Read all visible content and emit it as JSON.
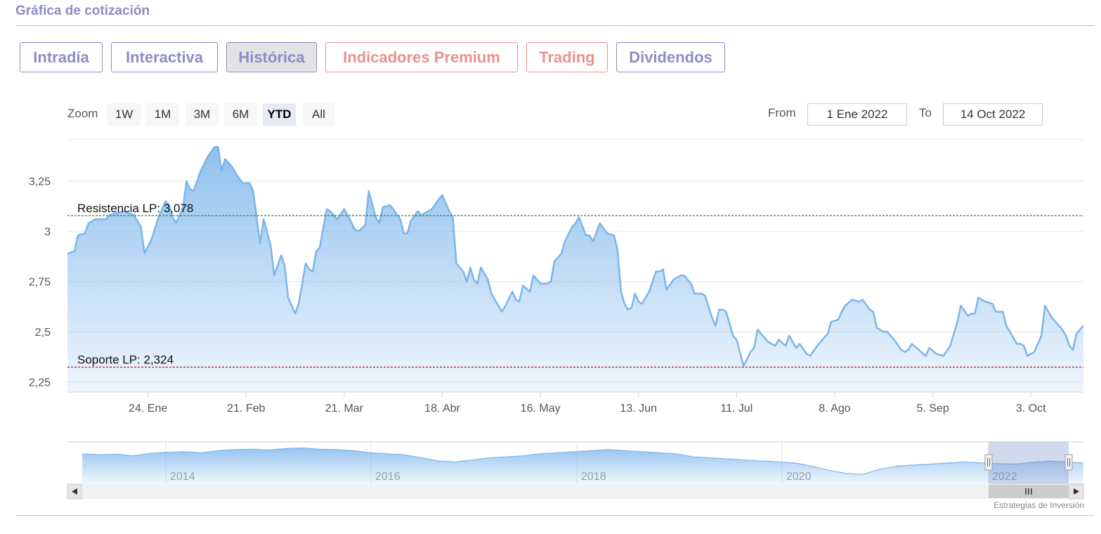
{
  "section_title": "Gráfica de cotización",
  "tabs": [
    {
      "label": "Intradía",
      "active": false,
      "premium": false
    },
    {
      "label": "Interactiva",
      "active": false,
      "premium": false
    },
    {
      "label": "Histórica",
      "active": true,
      "premium": false
    },
    {
      "label": "Indicadores Premium",
      "active": false,
      "premium": true
    },
    {
      "label": "Trading",
      "active": false,
      "premium": true
    },
    {
      "label": "Dividendos",
      "active": false,
      "premium": false
    }
  ],
  "zoom": {
    "label": "Zoom",
    "buttons": [
      "1W",
      "1M",
      "3M",
      "6M",
      "YTD",
      "All"
    ],
    "selected": "YTD"
  },
  "range": {
    "from_label": "From",
    "from_value": "1 Ene 2022",
    "to_label": "To",
    "to_value": "14 Oct 2022"
  },
  "credit": "Estrategias de Inversión",
  "colors": {
    "accent": "#8e8cc4",
    "premium": "#e8928f",
    "series_line": "#7cb5ec",
    "resistance_line": "#2e7d32",
    "support_line": "#b71c1c"
  },
  "chart_data": {
    "type": "area",
    "ylim": [
      2.2,
      3.45
    ],
    "ytick_values": [
      2.25,
      2.5,
      2.75,
      3.0,
      3.25
    ],
    "ytick_labels": [
      "2,25",
      "2,5",
      "2,75",
      "3",
      "3,25"
    ],
    "xlim": [
      0,
      286
    ],
    "xticks": [
      {
        "x": 23,
        "label": "24. Ene"
      },
      {
        "x": 51,
        "label": "21. Feb"
      },
      {
        "x": 79,
        "label": "21. Mar"
      },
      {
        "x": 107,
        "label": "18. Abr"
      },
      {
        "x": 135,
        "label": "16. May"
      },
      {
        "x": 163,
        "label": "13. Jun"
      },
      {
        "x": 191,
        "label": "11. Jul"
      },
      {
        "x": 219,
        "label": "8. Ago"
      },
      {
        "x": 247,
        "label": "5. Sep"
      },
      {
        "x": 275,
        "label": "3. Oct"
      }
    ],
    "x_unit": "days since 1 Ene 2022",
    "series": [
      {
        "points": [
          [
            0,
            2.89
          ],
          [
            2,
            2.9
          ],
          [
            3,
            2.98
          ],
          [
            5,
            2.99
          ],
          [
            6,
            3.04
          ],
          [
            8,
            3.06
          ],
          [
            11,
            3.06
          ],
          [
            12,
            3.08
          ],
          [
            14,
            3.09
          ],
          [
            16,
            3.1
          ],
          [
            19,
            3.08
          ],
          [
            21,
            3.02
          ],
          [
            22,
            2.89
          ],
          [
            24,
            2.96
          ],
          [
            26,
            3.07
          ],
          [
            28,
            3.15
          ],
          [
            29,
            3.13
          ],
          [
            30,
            3.07
          ],
          [
            31,
            3.04
          ],
          [
            33,
            3.12
          ],
          [
            34,
            3.25
          ],
          [
            35,
            3.21
          ],
          [
            36,
            3.2
          ],
          [
            38,
            3.3
          ],
          [
            40,
            3.37
          ],
          [
            42,
            3.42
          ],
          [
            43,
            3.42
          ],
          [
            44,
            3.3
          ],
          [
            45,
            3.36
          ],
          [
            47,
            3.32
          ],
          [
            48,
            3.29
          ],
          [
            50,
            3.24
          ],
          [
            52,
            3.24
          ],
          [
            53,
            3.2
          ],
          [
            55,
            2.94
          ],
          [
            56,
            3.06
          ],
          [
            58,
            2.93
          ],
          [
            59,
            2.78
          ],
          [
            61,
            2.88
          ],
          [
            62,
            2.83
          ],
          [
            63,
            2.67
          ],
          [
            65,
            2.59
          ],
          [
            66,
            2.64
          ],
          [
            68,
            2.84
          ],
          [
            69,
            2.81
          ],
          [
            70,
            2.8
          ],
          [
            71,
            2.9
          ],
          [
            72,
            2.92
          ],
          [
            74,
            3.11
          ],
          [
            75,
            3.1
          ],
          [
            76,
            3.08
          ],
          [
            77,
            3.06
          ],
          [
            79,
            3.11
          ],
          [
            80,
            3.08
          ],
          [
            82,
            3.01
          ],
          [
            83,
            3.0
          ],
          [
            85,
            3.03
          ],
          [
            86,
            3.2
          ],
          [
            88,
            3.07
          ],
          [
            89,
            3.04
          ],
          [
            90,
            3.12
          ],
          [
            92,
            3.13
          ],
          [
            93,
            3.11
          ],
          [
            95,
            3.06
          ],
          [
            96,
            2.99
          ],
          [
            97,
            2.99
          ],
          [
            98,
            3.05
          ],
          [
            100,
            3.1
          ],
          [
            101,
            3.08
          ],
          [
            103,
            3.1
          ],
          [
            104,
            3.11
          ],
          [
            106,
            3.16
          ],
          [
            107,
            3.18
          ],
          [
            109,
            3.1
          ],
          [
            110,
            3.07
          ],
          [
            111,
            2.84
          ],
          [
            113,
            2.8
          ],
          [
            114,
            2.75
          ],
          [
            115,
            2.82
          ],
          [
            116,
            2.76
          ],
          [
            117,
            2.74
          ],
          [
            118,
            2.82
          ],
          [
            120,
            2.76
          ],
          [
            121,
            2.69
          ],
          [
            122,
            2.66
          ],
          [
            124,
            2.6
          ],
          [
            125,
            2.63
          ],
          [
            127,
            2.7
          ],
          [
            128,
            2.66
          ],
          [
            129,
            2.65
          ],
          [
            130,
            2.73
          ],
          [
            132,
            2.7
          ],
          [
            133,
            2.78
          ],
          [
            135,
            2.74
          ],
          [
            137,
            2.74
          ],
          [
            138,
            2.75
          ],
          [
            139,
            2.85
          ],
          [
            141,
            2.89
          ],
          [
            142,
            2.95
          ],
          [
            144,
            3.02
          ],
          [
            145,
            3.04
          ],
          [
            146,
            3.07
          ],
          [
            148,
            2.98
          ],
          [
            149,
            2.98
          ],
          [
            150,
            2.95
          ],
          [
            152,
            3.04
          ],
          [
            154,
            2.99
          ],
          [
            156,
            2.98
          ],
          [
            157,
            2.91
          ],
          [
            158,
            2.7
          ],
          [
            159,
            2.64
          ],
          [
            160,
            2.61
          ],
          [
            161,
            2.62
          ],
          [
            162,
            2.69
          ],
          [
            163,
            2.65
          ],
          [
            164,
            2.64
          ],
          [
            166,
            2.7
          ],
          [
            168,
            2.8
          ],
          [
            169,
            2.8
          ],
          [
            170,
            2.81
          ],
          [
            171,
            2.71
          ],
          [
            173,
            2.76
          ],
          [
            175,
            2.78
          ],
          [
            176,
            2.78
          ],
          [
            178,
            2.74
          ],
          [
            179,
            2.69
          ],
          [
            181,
            2.69
          ],
          [
            182,
            2.68
          ],
          [
            184,
            2.57
          ],
          [
            185,
            2.53
          ],
          [
            186,
            2.61
          ],
          [
            187,
            2.61
          ],
          [
            188,
            2.6
          ],
          [
            190,
            2.48
          ],
          [
            191,
            2.46
          ],
          [
            193,
            2.33
          ],
          [
            195,
            2.4
          ],
          [
            196,
            2.42
          ],
          [
            197,
            2.51
          ],
          [
            199,
            2.47
          ],
          [
            200,
            2.45
          ],
          [
            202,
            2.43
          ],
          [
            203,
            2.46
          ],
          [
            205,
            2.43
          ],
          [
            206,
            2.48
          ],
          [
            208,
            2.42
          ],
          [
            209,
            2.44
          ],
          [
            211,
            2.39
          ],
          [
            212,
            2.38
          ],
          [
            214,
            2.43
          ],
          [
            216,
            2.47
          ],
          [
            217,
            2.49
          ],
          [
            218,
            2.55
          ],
          [
            220,
            2.56
          ],
          [
            221,
            2.6
          ],
          [
            222,
            2.63
          ],
          [
            224,
            2.66
          ],
          [
            226,
            2.65
          ],
          [
            227,
            2.66
          ],
          [
            229,
            2.61
          ],
          [
            230,
            2.6
          ],
          [
            231,
            2.52
          ],
          [
            233,
            2.5
          ],
          [
            234,
            2.5
          ],
          [
            236,
            2.46
          ],
          [
            238,
            2.41
          ],
          [
            239,
            2.4
          ],
          [
            240,
            2.41
          ],
          [
            241,
            2.44
          ],
          [
            243,
            2.41
          ],
          [
            245,
            2.38
          ],
          [
            246,
            2.42
          ],
          [
            248,
            2.39
          ],
          [
            250,
            2.38
          ],
          [
            252,
            2.43
          ],
          [
            254,
            2.55
          ],
          [
            255,
            2.63
          ],
          [
            257,
            2.58
          ],
          [
            258,
            2.59
          ],
          [
            259,
            2.59
          ],
          [
            260,
            2.67
          ],
          [
            262,
            2.65
          ],
          [
            264,
            2.64
          ],
          [
            265,
            2.6
          ],
          [
            267,
            2.6
          ],
          [
            268,
            2.53
          ],
          [
            269,
            2.5
          ],
          [
            271,
            2.44
          ],
          [
            272,
            2.44
          ],
          [
            273,
            2.43
          ],
          [
            274,
            2.38
          ],
          [
            276,
            2.4
          ],
          [
            278,
            2.48
          ],
          [
            279,
            2.63
          ],
          [
            281,
            2.57
          ],
          [
            282,
            2.55
          ],
          [
            284,
            2.51
          ],
          [
            285,
            2.48
          ],
          [
            286,
            2.43
          ],
          [
            287,
            2.41
          ],
          [
            288,
            2.49
          ],
          [
            290,
            2.53
          ]
        ]
      }
    ],
    "plot_lines": [
      {
        "value": 3.078,
        "label": "Resistencia LP: 3,078",
        "color": "#2e7d32"
      },
      {
        "value": 2.324,
        "label": "Soporte LP: 2,324",
        "color": "#b71c1c"
      }
    ],
    "navigator": {
      "labels": [
        "2014",
        "2016",
        "2018",
        "2020",
        "2022"
      ],
      "series": [
        2.9,
        2.85,
        2.88,
        2.8,
        2.92,
        2.97,
        3.0,
        2.95,
        3.05,
        3.1,
        3.12,
        3.08,
        3.15,
        3.18,
        3.12,
        3.1,
        3.05,
        2.95,
        2.9,
        2.85,
        2.7,
        2.55,
        2.5,
        2.6,
        2.7,
        2.75,
        2.8,
        2.9,
        2.95,
        3.0,
        3.05,
        3.1,
        3.05,
        3.0,
        2.95,
        2.9,
        2.75,
        2.7,
        2.65,
        2.6,
        2.55,
        2.5,
        2.45,
        2.3,
        2.1,
        1.95,
        1.9,
        2.15,
        2.3,
        2.35,
        2.4,
        2.45,
        2.5,
        2.45,
        2.42,
        2.4,
        2.48,
        2.55,
        2.5,
        2.45
      ]
    }
  }
}
